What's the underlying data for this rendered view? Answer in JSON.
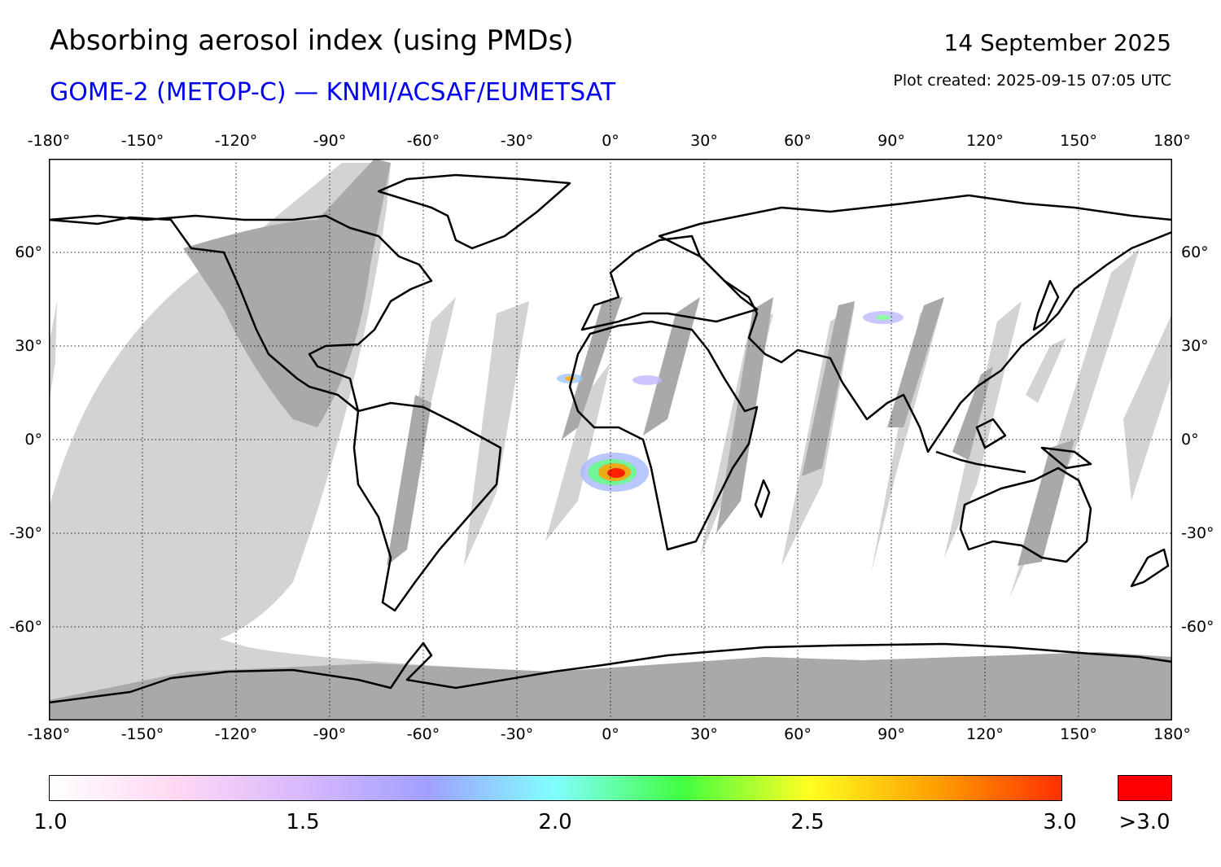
{
  "header": {
    "title": "Absorbing aerosol index (using PMDs)",
    "subtitle": "GOME-2 (METOP-C) — KNMI/ACSAF/EUMETSAT",
    "date": "14 September 2025",
    "created": "Plot created: 2025-09-15 07:05 UTC"
  },
  "map": {
    "projection": "equirectangular",
    "lon_range": [
      -180,
      180
    ],
    "lat_range": [
      -90,
      90
    ],
    "grid": true,
    "lon_ticks": [
      "-180°",
      "-150°",
      "-120°",
      "-90°",
      "-60°",
      "-30°",
      "0°",
      "30°",
      "60°",
      "90°",
      "120°",
      "150°",
      "180°"
    ],
    "lat_ticks": [
      "60°",
      "30°",
      "0°",
      "-30°",
      "-60°"
    ],
    "colors": {
      "no_data": "#d3d3d3",
      "night": "#a9a9a9",
      "coast": "#000000"
    }
  },
  "colorbar": {
    "labels": [
      "1.0",
      "1.5",
      "2.0",
      "2.5",
      "3.0"
    ],
    "over_label": ">3.0",
    "range": [
      1.0,
      3.0
    ],
    "stops": [
      "#ffffff",
      "#ffd8f2",
      "#d8b8ff",
      "#a0a0ff",
      "#80ffff",
      "#40ff40",
      "#ffff20",
      "#ffa000",
      "#ff3000"
    ],
    "over_color": "#ff0000"
  }
}
